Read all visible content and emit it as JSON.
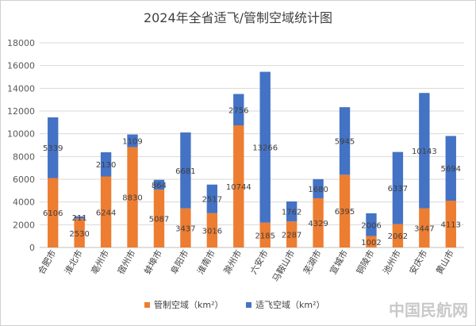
{
  "chart_data": {
    "type": "bar",
    "stacked": true,
    "title": "2024年全省适飞/管制空域统计图",
    "categories": [
      "合肥市",
      "淮北市",
      "亳州市",
      "宿州市",
      "蚌埠市",
      "阜阳市",
      "淮南市",
      "滁州市",
      "六安市",
      "马鞍山市",
      "芜湖市",
      "宣城市",
      "铜陵市",
      "池州市",
      "安庆市",
      "黄山市"
    ],
    "series": [
      {
        "name": "管制空域（km²）",
        "color": "#ED7D31",
        "values": [
          6106,
          2530,
          6244,
          8830,
          5087,
          3437,
          3016,
          10744,
          2185,
          2287,
          4329,
          6395,
          1002,
          2062,
          3447,
          4113
        ]
      },
      {
        "name": "适飞空域（km²）",
        "color": "#4472C4",
        "values": [
          5339,
          211,
          2130,
          1109,
          864,
          6681,
          2517,
          2756,
          13266,
          1762,
          1680,
          5945,
          2006,
          6337,
          10143,
          5694
        ]
      }
    ],
    "ylim": [
      0,
      18000
    ],
    "yticks": [
      0,
      2000,
      4000,
      6000,
      8000,
      10000,
      12000,
      14000,
      16000,
      18000
    ],
    "grid": true,
    "legend_position": "bottom"
  },
  "watermark": "中国民航网"
}
